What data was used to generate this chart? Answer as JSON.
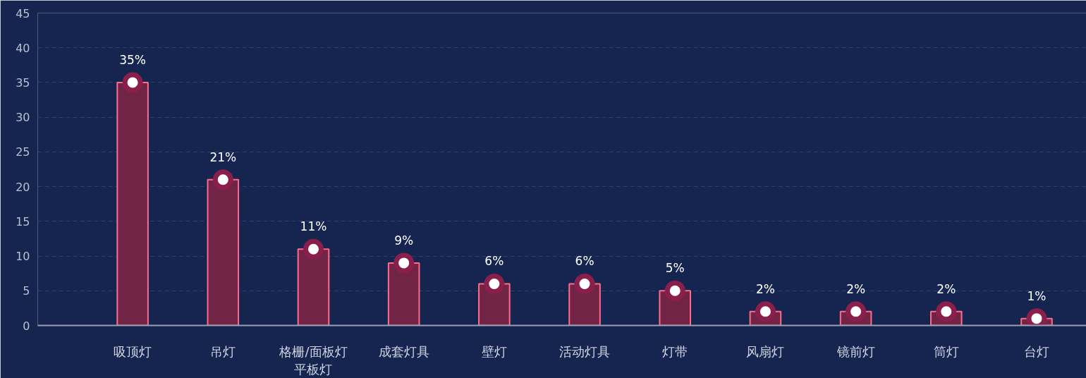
{
  "chart_data": {
    "type": "bar",
    "categories": [
      "吸顶灯",
      "吊灯",
      "格栅/面板灯平板灯",
      "成套灯具",
      "壁灯",
      "活动灯具",
      "灯带",
      "风扇灯",
      "镜前灯",
      "筒灯",
      "台灯"
    ],
    "series": [
      {
        "color": "#722446",
        "values": [
          35,
          21,
          11,
          9,
          6,
          6,
          5,
          2,
          2,
          2,
          1
        ],
        "value_labels": [
          "35%",
          "21%",
          "11%",
          "9%",
          "6%",
          "6%",
          "5%",
          "2%",
          "2%",
          "2%",
          "1%"
        ]
      },
      {
        "type": "scatter",
        "color": "#ffffff",
        "marker": "circle",
        "values": [
          35,
          21,
          11,
          9,
          6,
          6,
          5,
          2,
          2,
          2,
          1
        ]
      }
    ],
    "ylim": [
      0,
      45
    ],
    "yticks": [
      0,
      5,
      10,
      15,
      20,
      25,
      30,
      35,
      40,
      45
    ],
    "grid": "y"
  }
}
